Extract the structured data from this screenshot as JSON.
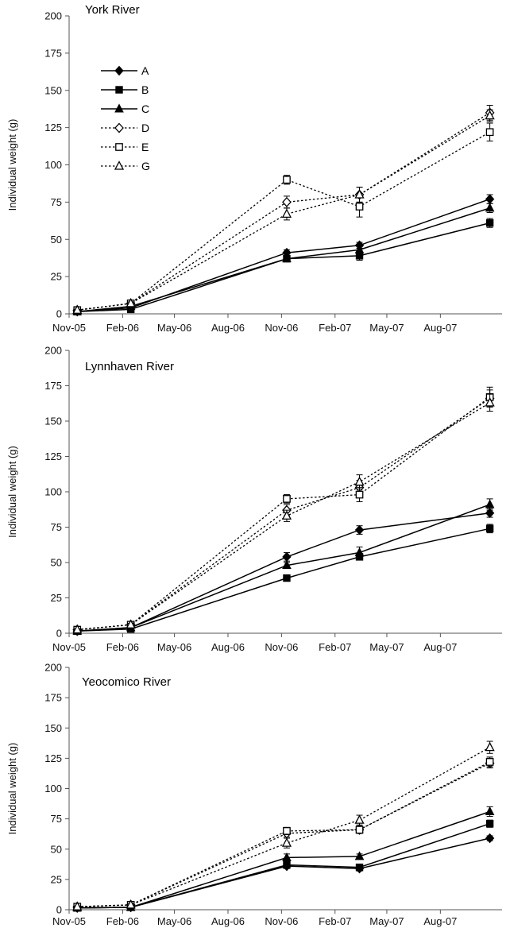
{
  "chart_data": [
    {
      "type": "line",
      "title": "York River",
      "xlabel": "",
      "ylabel": "Individual weight (g)",
      "ylim": [
        0,
        200
      ],
      "yticks": [
        "0",
        "25",
        "50",
        "75",
        "100",
        "125",
        "150",
        "175",
        "200"
      ],
      "xlim": [
        "2005-11-01",
        "2007-11-15"
      ],
      "xticks": [
        "Nov-05",
        "Feb-06",
        "May-06",
        "Aug-06",
        "Nov-06",
        "Feb-07",
        "May-07",
        "Aug-07"
      ],
      "x": [
        "2005-11-15",
        "2006-02-15",
        "2006-11-10",
        "2007-03-15",
        "2007-10-25"
      ],
      "legend_position": "upper-left",
      "grid": false,
      "series": [
        {
          "name": "A",
          "marker": "filled-diamond",
          "line": "solid",
          "values": [
            1.5,
            4,
            41,
            46,
            77
          ],
          "errors": [
            0.5,
            0.5,
            2,
            2,
            3
          ]
        },
        {
          "name": "B",
          "marker": "filled-square",
          "line": "solid",
          "values": [
            1.5,
            3,
            37,
            39,
            61
          ],
          "errors": [
            0.5,
            0.5,
            2,
            3,
            3
          ]
        },
        {
          "name": "C",
          "marker": "filled-triangle",
          "line": "solid",
          "values": [
            1.5,
            5,
            37,
            43,
            71
          ],
          "errors": [
            0.5,
            0.5,
            2,
            2,
            3
          ]
        },
        {
          "name": "D",
          "marker": "open-diamond",
          "line": "dotted",
          "values": [
            2.5,
            7,
            75,
            80,
            135
          ],
          "errors": [
            0.5,
            1,
            4,
            5,
            5
          ]
        },
        {
          "name": "E",
          "marker": "open-square",
          "line": "dotted",
          "values": [
            2.5,
            7,
            90,
            72,
            122
          ],
          "errors": [
            0.5,
            1,
            3,
            7,
            6
          ]
        },
        {
          "name": "G",
          "marker": "open-triangle",
          "line": "dotted",
          "values": [
            2.5,
            7,
            67,
            80,
            133
          ],
          "errors": [
            0.5,
            1,
            4,
            5,
            4
          ]
        }
      ]
    },
    {
      "type": "line",
      "title": "Lynnhaven River",
      "xlabel": "",
      "ylabel": "Individual weight (g)",
      "ylim": [
        0,
        200
      ],
      "yticks": [
        "0",
        "25",
        "50",
        "75",
        "100",
        "125",
        "150",
        "175",
        "200"
      ],
      "xlim": [
        "2005-11-01",
        "2007-11-15"
      ],
      "xticks": [
        "Nov-05",
        "Feb-06",
        "May-06",
        "Aug-06",
        "Nov-06",
        "Feb-07",
        "May-07",
        "Aug-07"
      ],
      "x": [
        "2005-11-15",
        "2006-02-15",
        "2006-11-10",
        "2007-03-15",
        "2007-10-25"
      ],
      "grid": false,
      "series": [
        {
          "name": "A",
          "marker": "filled-diamond",
          "line": "solid",
          "values": [
            1.5,
            4,
            54,
            73,
            85
          ],
          "errors": [
            0.5,
            0.5,
            3,
            3,
            3
          ]
        },
        {
          "name": "B",
          "marker": "filled-square",
          "line": "solid",
          "values": [
            1.5,
            3,
            39,
            54,
            74
          ],
          "errors": [
            0.5,
            0.5,
            2,
            2,
            3
          ]
        },
        {
          "name": "C",
          "marker": "filled-triangle",
          "line": "solid",
          "values": [
            1.5,
            4,
            48,
            57,
            91
          ],
          "errors": [
            0.5,
            0.5,
            2,
            4,
            4
          ]
        },
        {
          "name": "D",
          "marker": "open-diamond",
          "line": "dotted",
          "values": [
            2.5,
            6,
            87,
            103,
            166
          ],
          "errors": [
            0.5,
            1,
            4,
            5,
            6
          ]
        },
        {
          "name": "E",
          "marker": "open-square",
          "line": "dotted",
          "values": [
            2.5,
            6,
            95,
            98,
            167
          ],
          "errors": [
            0.5,
            1,
            3,
            5,
            7
          ]
        },
        {
          "name": "G",
          "marker": "open-triangle",
          "line": "dotted",
          "values": [
            2.5,
            6,
            83,
            107,
            163
          ],
          "errors": [
            0.5,
            1,
            4,
            5,
            6
          ]
        }
      ]
    },
    {
      "type": "line",
      "title": "Yeocomico River",
      "xlabel": "",
      "ylabel": "Individual weight (g)",
      "ylim": [
        0,
        200
      ],
      "yticks": [
        "0",
        "25",
        "50",
        "75",
        "100",
        "125",
        "150",
        "175",
        "200"
      ],
      "xlim": [
        "2005-11-01",
        "2007-11-15"
      ],
      "xticks": [
        "Nov-05",
        "Feb-06",
        "May-06",
        "Aug-06",
        "Nov-06",
        "Feb-07",
        "May-07",
        "Aug-07"
      ],
      "x": [
        "2005-11-15",
        "2006-02-15",
        "2006-11-10",
        "2007-03-15",
        "2007-10-25"
      ],
      "grid": false,
      "series": [
        {
          "name": "A",
          "marker": "filled-diamond",
          "line": "solid",
          "values": [
            1.5,
            2,
            36,
            34,
            59
          ],
          "errors": [
            0.5,
            0.5,
            2,
            2,
            2
          ]
        },
        {
          "name": "B",
          "marker": "filled-square",
          "line": "solid",
          "values": [
            1.5,
            2,
            37,
            35,
            71
          ],
          "errors": [
            0.5,
            0.5,
            2,
            2,
            3
          ]
        },
        {
          "name": "C",
          "marker": "filled-triangle",
          "line": "solid",
          "values": [
            1.5,
            2,
            43,
            44,
            81
          ],
          "errors": [
            0.5,
            0.5,
            3,
            2,
            4
          ]
        },
        {
          "name": "D",
          "marker": "open-diamond",
          "line": "dotted",
          "values": [
            2.5,
            4,
            63,
            66,
            121
          ],
          "errors": [
            0.5,
            1,
            3,
            3,
            4
          ]
        },
        {
          "name": "E",
          "marker": "open-square",
          "line": "dotted",
          "values": [
            2.5,
            4,
            65,
            66,
            122
          ],
          "errors": [
            0.5,
            1,
            3,
            3,
            4
          ]
        },
        {
          "name": "G",
          "marker": "open-triangle",
          "line": "dotted",
          "values": [
            2.5,
            4,
            55,
            74,
            134
          ],
          "errors": [
            0.5,
            1,
            4,
            4,
            5
          ]
        }
      ]
    }
  ]
}
